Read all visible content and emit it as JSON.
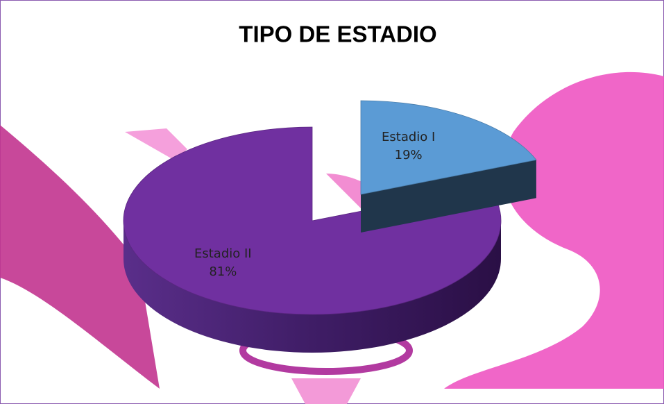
{
  "chart_data": {
    "type": "pie3d",
    "title": "TIPO DE ESTADIO",
    "categories": [
      "Estadio I",
      "Estadio II"
    ],
    "values": [
      19,
      81
    ],
    "value_labels": [
      "19%",
      "81%"
    ],
    "colors": [
      "#5b9bd5",
      "#7030a0"
    ]
  }
}
